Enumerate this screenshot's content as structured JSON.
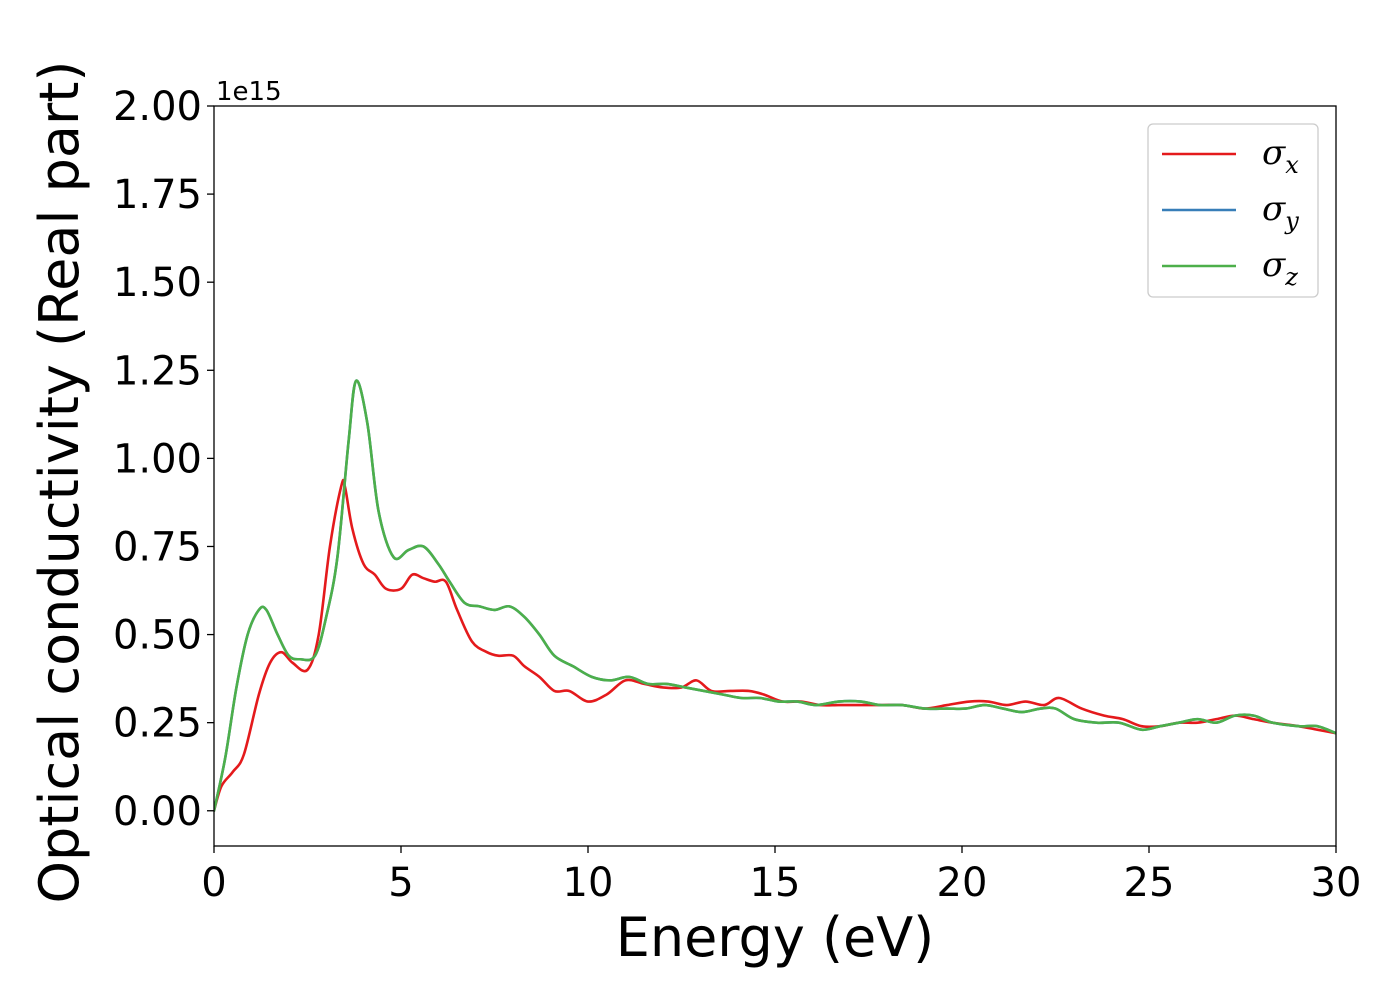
{
  "chart_data": {
    "type": "line",
    "xlabel": "Energy (eV)",
    "ylabel": "Optical conductivity (Real part)",
    "y_offset_label": "1e15",
    "xlim": [
      0,
      30
    ],
    "ylim": [
      -0.1,
      2.0
    ],
    "xticks": [
      0,
      5,
      10,
      15,
      20,
      25,
      30
    ],
    "xtick_labels": [
      "0",
      "5",
      "10",
      "15",
      "20",
      "25",
      "30"
    ],
    "yticks": [
      0.0,
      0.25,
      0.5,
      0.75,
      1.0,
      1.25,
      1.5,
      1.75,
      2.0
    ],
    "ytick_labels": [
      "0.00",
      "0.25",
      "0.50",
      "0.75",
      "1.00",
      "1.25",
      "1.50",
      "1.75",
      "2.00"
    ],
    "grid": false,
    "legend_position": "top-right",
    "series": [
      {
        "name": "σx",
        "legend_base": "σ",
        "legend_sub": "x",
        "color": "#e41a1c",
        "x": [
          0,
          0.2,
          0.5,
          0.8,
          1.2,
          1.5,
          1.8,
          2.1,
          2.5,
          2.8,
          3.1,
          3.4,
          3.5,
          3.7,
          4.0,
          4.3,
          4.6,
          5.0,
          5.3,
          5.6,
          5.9,
          6.2,
          6.5,
          6.9,
          7.3,
          7.6,
          8.0,
          8.3,
          8.7,
          9.1,
          9.5,
          10.0,
          10.5,
          11.0,
          11.5,
          12.0,
          12.5,
          12.9,
          13.3,
          13.8,
          14.3,
          14.7,
          15.2,
          15.7,
          16.2,
          16.7,
          17.2,
          17.8,
          18.4,
          19.0,
          19.6,
          20.2,
          20.7,
          21.2,
          21.7,
          22.2,
          22.6,
          23.2,
          23.8,
          24.3,
          24.8,
          25.3,
          25.8,
          26.3,
          26.8,
          27.3,
          27.8,
          28.3,
          29.0,
          29.5,
          30.0
        ],
        "y": [
          0.0,
          0.07,
          0.11,
          0.16,
          0.33,
          0.42,
          0.45,
          0.42,
          0.4,
          0.5,
          0.75,
          0.92,
          0.92,
          0.8,
          0.7,
          0.67,
          0.63,
          0.63,
          0.67,
          0.66,
          0.65,
          0.65,
          0.57,
          0.48,
          0.45,
          0.44,
          0.44,
          0.41,
          0.38,
          0.34,
          0.34,
          0.31,
          0.33,
          0.37,
          0.36,
          0.35,
          0.35,
          0.37,
          0.34,
          0.34,
          0.34,
          0.33,
          0.31,
          0.31,
          0.3,
          0.3,
          0.3,
          0.3,
          0.3,
          0.29,
          0.3,
          0.31,
          0.31,
          0.3,
          0.31,
          0.3,
          0.32,
          0.29,
          0.27,
          0.26,
          0.24,
          0.24,
          0.25,
          0.25,
          0.26,
          0.27,
          0.26,
          0.25,
          0.24,
          0.23,
          0.22
        ]
      },
      {
        "name": "σy",
        "legend_base": "σ",
        "legend_sub": "y",
        "color": "#377eb8",
        "x": [
          0,
          0.3,
          0.6,
          0.9,
          1.2,
          1.4,
          1.7,
          2.0,
          2.3,
          2.7,
          3.0,
          3.3,
          3.6,
          3.8,
          4.1,
          4.4,
          4.8,
          5.2,
          5.6,
          6.0,
          6.3,
          6.7,
          7.1,
          7.5,
          7.9,
          8.3,
          8.7,
          9.1,
          9.6,
          10.1,
          10.6,
          11.1,
          11.6,
          12.1,
          12.6,
          13.1,
          13.6,
          14.1,
          14.6,
          15.1,
          15.6,
          16.1,
          16.7,
          17.3,
          17.8,
          18.4,
          19.0,
          19.6,
          20.1,
          20.6,
          21.1,
          21.6,
          22.1,
          22.5,
          23.0,
          23.6,
          24.2,
          24.8,
          25.3,
          25.8,
          26.3,
          26.8,
          27.3,
          27.8,
          28.3,
          29.0,
          29.5,
          30.0
        ],
        "y": [
          0.0,
          0.15,
          0.35,
          0.5,
          0.57,
          0.57,
          0.5,
          0.44,
          0.43,
          0.44,
          0.55,
          0.72,
          1.05,
          1.22,
          1.1,
          0.85,
          0.72,
          0.74,
          0.75,
          0.7,
          0.65,
          0.59,
          0.58,
          0.57,
          0.58,
          0.55,
          0.5,
          0.44,
          0.41,
          0.38,
          0.37,
          0.38,
          0.36,
          0.36,
          0.35,
          0.34,
          0.33,
          0.32,
          0.32,
          0.31,
          0.31,
          0.3,
          0.31,
          0.31,
          0.3,
          0.3,
          0.29,
          0.29,
          0.29,
          0.3,
          0.29,
          0.28,
          0.29,
          0.29,
          0.26,
          0.25,
          0.25,
          0.23,
          0.24,
          0.25,
          0.26,
          0.25,
          0.27,
          0.27,
          0.25,
          0.24,
          0.24,
          0.22
        ]
      },
      {
        "name": "σz",
        "legend_base": "σ",
        "legend_sub": "z",
        "color": "#4daf4a",
        "x": [
          0,
          0.3,
          0.6,
          0.9,
          1.2,
          1.4,
          1.7,
          2.0,
          2.3,
          2.7,
          3.0,
          3.3,
          3.6,
          3.8,
          4.1,
          4.4,
          4.8,
          5.2,
          5.6,
          6.0,
          6.3,
          6.7,
          7.1,
          7.5,
          7.9,
          8.3,
          8.7,
          9.1,
          9.6,
          10.1,
          10.6,
          11.1,
          11.6,
          12.1,
          12.6,
          13.1,
          13.6,
          14.1,
          14.6,
          15.1,
          15.6,
          16.1,
          16.7,
          17.3,
          17.8,
          18.4,
          19.0,
          19.6,
          20.1,
          20.6,
          21.1,
          21.6,
          22.1,
          22.5,
          23.0,
          23.6,
          24.2,
          24.8,
          25.3,
          25.8,
          26.3,
          26.8,
          27.3,
          27.8,
          28.3,
          29.0,
          29.5,
          30.0
        ],
        "y": [
          0.0,
          0.15,
          0.35,
          0.5,
          0.57,
          0.57,
          0.5,
          0.44,
          0.43,
          0.44,
          0.55,
          0.72,
          1.05,
          1.22,
          1.1,
          0.85,
          0.72,
          0.74,
          0.75,
          0.7,
          0.65,
          0.59,
          0.58,
          0.57,
          0.58,
          0.55,
          0.5,
          0.44,
          0.41,
          0.38,
          0.37,
          0.38,
          0.36,
          0.36,
          0.35,
          0.34,
          0.33,
          0.32,
          0.32,
          0.31,
          0.31,
          0.3,
          0.31,
          0.31,
          0.3,
          0.3,
          0.29,
          0.29,
          0.29,
          0.3,
          0.29,
          0.28,
          0.29,
          0.29,
          0.26,
          0.25,
          0.25,
          0.23,
          0.24,
          0.25,
          0.26,
          0.25,
          0.27,
          0.27,
          0.25,
          0.24,
          0.24,
          0.22
        ]
      }
    ]
  }
}
